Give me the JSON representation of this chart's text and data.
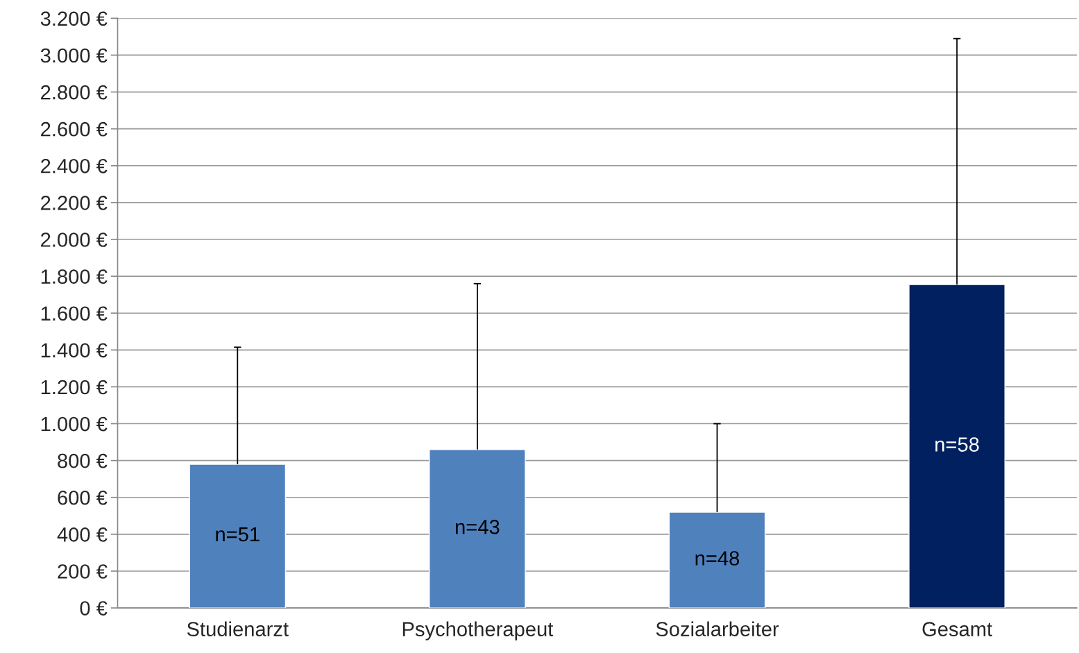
{
  "chart_data": {
    "type": "bar",
    "categories": [
      "Studienarzt",
      "Psychotherapeut",
      "Sozialarbeiter",
      "Gesamt"
    ],
    "values": [
      780,
      860,
      520,
      1755
    ],
    "colors": [
      "#4f81bd",
      "#4f81bd",
      "#4f81bd",
      "#002060"
    ],
    "errors": [
      [
        780,
        1415
      ],
      [
        860,
        1760
      ],
      [
        520,
        1000
      ],
      [
        1755,
        3090
      ]
    ],
    "ylim": [
      0,
      3200
    ],
    "yticks": [
      {
        "value": 0,
        "label": "0 €"
      },
      {
        "value": 200,
        "label": "200 €"
      },
      {
        "value": 400,
        "label": "400 €"
      },
      {
        "value": 600,
        "label": "600 €"
      },
      {
        "value": 800,
        "label": "800 €"
      },
      {
        "value": 1000,
        "label": "1.000 €"
      },
      {
        "value": 1200,
        "label": "1.200 €"
      },
      {
        "value": 1400,
        "label": "1.400 €"
      },
      {
        "value": 1600,
        "label": "1.600 €"
      },
      {
        "value": 1800,
        "label": "1.800 €"
      },
      {
        "value": 2000,
        "label": "2.000 €"
      },
      {
        "value": 2200,
        "label": "2.200 €"
      },
      {
        "value": 2400,
        "label": "2.400 €"
      },
      {
        "value": 2600,
        "label": "2.600 €"
      },
      {
        "value": 2800,
        "label": "2.800 €"
      },
      {
        "value": 3000,
        "label": "3.000 €"
      },
      {
        "value": 3200,
        "label": "3.200 €"
      }
    ],
    "grid": "y",
    "annotations": [
      "n=51",
      "n=43",
      "n=48",
      "n=58"
    ]
  }
}
